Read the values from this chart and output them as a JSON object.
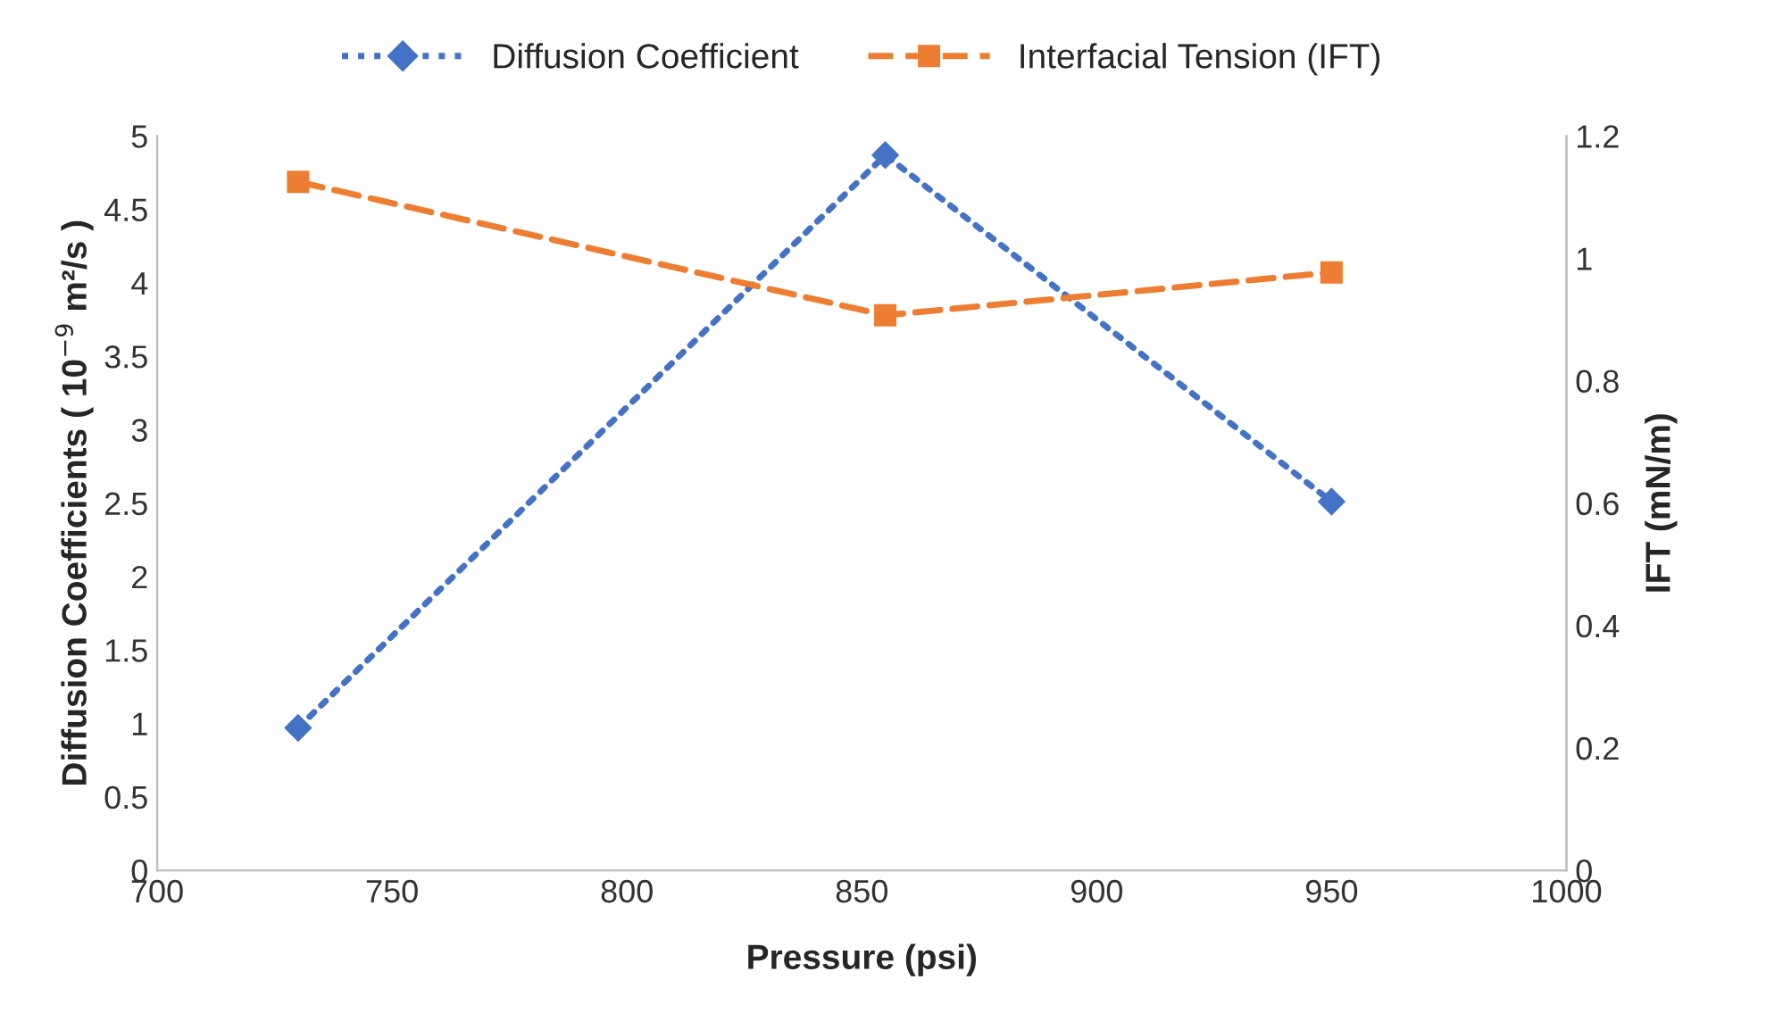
{
  "chart_data": {
    "type": "line",
    "xlabel": "Pressure (psi)",
    "ylabel": "Diffusion Coefficients ( 10$^{−9}$ m²/s )",
    "y2label": "IFT (mN/m)",
    "x": [
      730,
      855,
      950
    ],
    "series": [
      {
        "name": "Diffusion Coefficient",
        "color": "#4472c4",
        "values": [
          0.97,
          4.87,
          2.51
        ],
        "marker": "diamond",
        "line_style": "dotted"
      },
      {
        "name": "Interfacial Tension (IFT)",
        "color": "#ed7d31",
        "values": [
          1.125,
          0.907,
          0.977
        ],
        "marker": "square",
        "line_style": "dashed",
        "axis": "y2"
      }
    ],
    "xlim": [
      700,
      1000
    ],
    "xticks": [
      700,
      750,
      800,
      850,
      900,
      950,
      1000
    ],
    "ylim": [
      0,
      5
    ],
    "yticks": [
      0,
      0.5,
      1,
      1.5,
      2,
      2.5,
      3,
      3.5,
      4,
      4.5,
      5
    ],
    "y2lim": [
      0,
      1.2
    ],
    "y2ticks": [
      0,
      0.2,
      0.4,
      0.6,
      0.8,
      1,
      1.2
    ],
    "grid": false,
    "legend": "top"
  }
}
